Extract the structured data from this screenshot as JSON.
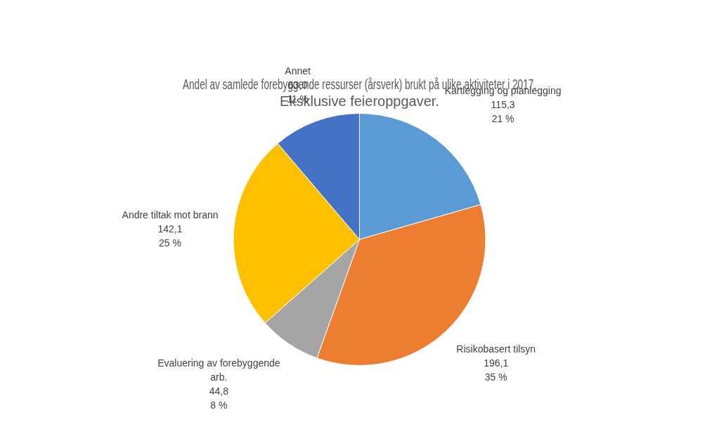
{
  "chart_data": {
    "type": "pie",
    "title": "Andel av samlede forebyggende ressurser (årsverk) brukt på ulike aktiviteter i 2017. Eksklusive feieroppgaver.",
    "categories": [
      "Kartlegging og planlegging",
      "Risikobasert tilsyn",
      "Evaluering av forebyggende arb.",
      "Andre tiltak mot brann",
      "Annet"
    ],
    "values": [
      115.3,
      196.1,
      44.8,
      142.1,
      63.0
    ],
    "value_labels": [
      "115,3",
      "196,1",
      "44,8",
      "142,1",
      "63,0"
    ],
    "percentages": [
      21,
      35,
      8,
      25,
      11
    ],
    "percentage_labels": [
      "21 %",
      "35 %",
      "8 %",
      "25 %",
      "11 %"
    ],
    "colors": [
      "#5b9bd5",
      "#ed7d31",
      "#a5a5a5",
      "#ffc000",
      "#4472c4"
    ],
    "data_labels": true,
    "legend": false
  }
}
